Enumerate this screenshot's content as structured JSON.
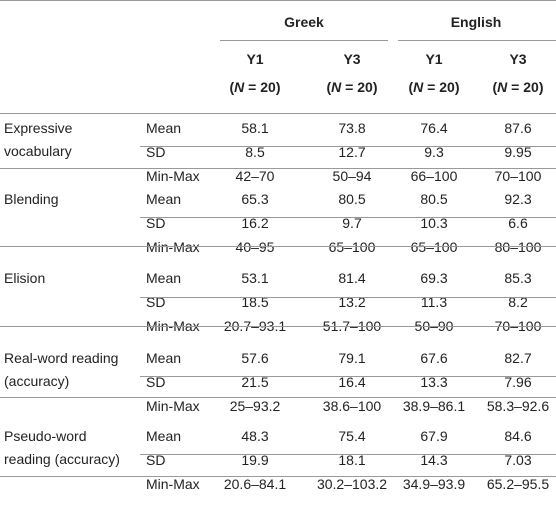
{
  "header": {
    "groups": [
      "Greek",
      "English"
    ],
    "cols": [
      {
        "year": "Y1",
        "n_label": "N",
        "n_value": " = 20)"
      },
      {
        "year": "Y3",
        "n_label": "N",
        "n_value": " = 20)"
      },
      {
        "year": "Y1",
        "n_label": "N",
        "n_value": " = 20)"
      },
      {
        "year": "Y3",
        "n_label": "N",
        "n_value": " = 20)"
      }
    ]
  },
  "measures": [
    {
      "label_lines": [
        "Expressive",
        "vocabulary"
      ],
      "rows": [
        {
          "stat": "Mean",
          "values": [
            "58.1",
            "73.8",
            "76.4",
            "87.6"
          ]
        },
        {
          "stat": "SD",
          "values": [
            "8.5",
            "12.7",
            "9.3",
            "9.95"
          ]
        },
        {
          "stat": "Min-Max",
          "values": [
            "42–70",
            "50–94",
            "66–100",
            "70–100"
          ]
        }
      ]
    },
    {
      "label_lines": [
        "Blending"
      ],
      "rows": [
        {
          "stat": "Mean",
          "values": [
            "65.3",
            "80.5",
            "80.5",
            "92.3"
          ]
        },
        {
          "stat": "SD",
          "values": [
            "16.2",
            "9.7",
            "10.3",
            "6.6"
          ]
        },
        {
          "stat": "Min-Max",
          "values": [
            "40–95",
            "65–100",
            "65–100",
            "80–100"
          ]
        }
      ]
    },
    {
      "label_lines": [
        "Elision"
      ],
      "rows": [
        {
          "stat": "Mean",
          "values": [
            "53.1",
            "81.4",
            "69.3",
            "85.3"
          ]
        },
        {
          "stat": "SD",
          "values": [
            "18.5",
            "13.2",
            "11.3",
            "8.2"
          ]
        },
        {
          "stat": "Min-Max",
          "values": [
            "20.7–93.1",
            "51.7–100",
            "50–90",
            "70–100"
          ]
        }
      ]
    },
    {
      "label_lines": [
        "Real-word reading",
        "(accuracy)"
      ],
      "rows": [
        {
          "stat": "Mean",
          "values": [
            "57.6",
            "79.1",
            "67.6",
            "82.7"
          ]
        },
        {
          "stat": "SD",
          "values": [
            "21.5",
            "16.4",
            "13.3",
            "7.96"
          ]
        },
        {
          "stat": "Min-Max",
          "values": [
            "25–93.2",
            "38.6–100",
            "38.9–86.1",
            "58.3–92.6"
          ]
        }
      ]
    },
    {
      "label_lines": [
        "Pseudo-word",
        "reading (accuracy)"
      ],
      "rows": [
        {
          "stat": "Mean",
          "values": [
            "48.3",
            "75.4",
            "67.9",
            "84.6"
          ]
        },
        {
          "stat": "SD",
          "values": [
            "19.9",
            "18.1",
            "14.3",
            "7.03"
          ]
        },
        {
          "stat": "Min-Max",
          "values": [
            "20.6–84.1",
            "30.2–103.2",
            "34.9–93.9",
            "65.2–95.5"
          ]
        }
      ]
    }
  ]
}
